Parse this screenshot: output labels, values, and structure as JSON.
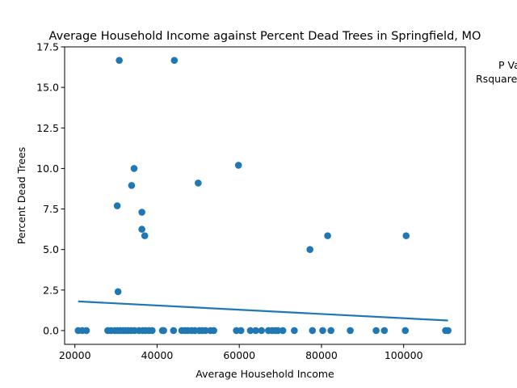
{
  "chart_data": {
    "type": "scatter",
    "title": "Average Household Income against Percent Dead Trees in Springfield, MO",
    "xlabel": "Average Household Income",
    "ylabel": "Percent Dead Trees",
    "xlim": [
      17500,
      115000
    ],
    "ylim": [
      -0.85,
      17.5
    ],
    "xticks": [
      20000,
      40000,
      60000,
      80000,
      100000
    ],
    "yticks": [
      0.0,
      2.5,
      5.0,
      7.5,
      10.0,
      12.5,
      15.0,
      17.5
    ],
    "xtick_labels": [
      "20000",
      "40000",
      "60000",
      "80000",
      "100000"
    ],
    "ytick_labels": [
      "0.0",
      "2.5",
      "5.0",
      "7.5",
      "10.0",
      "12.5",
      "15.0",
      "17.5"
    ],
    "grid": false,
    "annotations": [
      "P Va",
      "Rsquare"
    ],
    "colors": {
      "points": "#1f77b4",
      "trendline": "#1f77b4"
    },
    "series": [
      {
        "values": [
          [
            30800,
            16.67
          ],
          [
            44200,
            16.67
          ],
          [
            59800,
            10.2
          ],
          [
            34400,
            10.0
          ],
          [
            50000,
            9.1
          ],
          [
            33800,
            8.95
          ],
          [
            30300,
            7.7
          ],
          [
            36300,
            7.3
          ],
          [
            36300,
            6.25
          ],
          [
            37000,
            5.85
          ],
          [
            81500,
            5.85
          ],
          [
            100600,
            5.85
          ],
          [
            77200,
            5.0
          ],
          [
            30500,
            2.4
          ],
          [
            20800,
            0.0
          ],
          [
            21800,
            0.0
          ],
          [
            22800,
            0.0
          ],
          [
            28000,
            0.0
          ],
          [
            28800,
            0.0
          ],
          [
            29700,
            0.0
          ],
          [
            30300,
            0.0
          ],
          [
            31000,
            0.0
          ],
          [
            31700,
            0.0
          ],
          [
            32300,
            0.0
          ],
          [
            33000,
            0.0
          ],
          [
            33700,
            0.0
          ],
          [
            34500,
            0.0
          ],
          [
            35600,
            0.0
          ],
          [
            36500,
            0.0
          ],
          [
            37200,
            0.0
          ],
          [
            38000,
            0.0
          ],
          [
            38800,
            0.0
          ],
          [
            41300,
            0.0
          ],
          [
            41600,
            0.0
          ],
          [
            44000,
            0.0
          ],
          [
            46000,
            0.0
          ],
          [
            46800,
            0.0
          ],
          [
            47500,
            0.0
          ],
          [
            48400,
            0.0
          ],
          [
            49200,
            0.0
          ],
          [
            50300,
            0.0
          ],
          [
            51000,
            0.0
          ],
          [
            51800,
            0.0
          ],
          [
            53000,
            0.0
          ],
          [
            53800,
            0.0
          ],
          [
            59300,
            0.0
          ],
          [
            60400,
            0.0
          ],
          [
            62700,
            0.0
          ],
          [
            64000,
            0.0
          ],
          [
            65400,
            0.0
          ],
          [
            67100,
            0.0
          ],
          [
            68000,
            0.0
          ],
          [
            68800,
            0.0
          ],
          [
            69400,
            0.0
          ],
          [
            70600,
            0.0
          ],
          [
            73400,
            0.0
          ],
          [
            77800,
            0.0
          ],
          [
            80300,
            0.0
          ],
          [
            82300,
            0.0
          ],
          [
            87000,
            0.0
          ],
          [
            93300,
            0.0
          ],
          [
            95300,
            0.0
          ],
          [
            100400,
            0.0
          ],
          [
            110200,
            0.0
          ],
          [
            110800,
            0.0
          ]
        ]
      }
    ],
    "trendline": {
      "x": [
        20800,
        110800
      ],
      "y": [
        1.8,
        0.62
      ]
    }
  }
}
